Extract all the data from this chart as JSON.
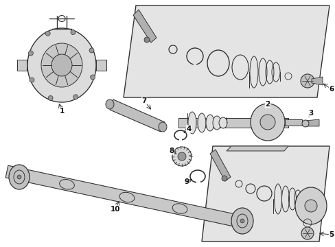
{
  "bg_color": "#ffffff",
  "line_color": "#333333",
  "fill_light": "#e8e8e8",
  "fill_medium": "#d0d0d0",
  "fill_dark": "#aaaaaa",
  "white": "#ffffff"
}
